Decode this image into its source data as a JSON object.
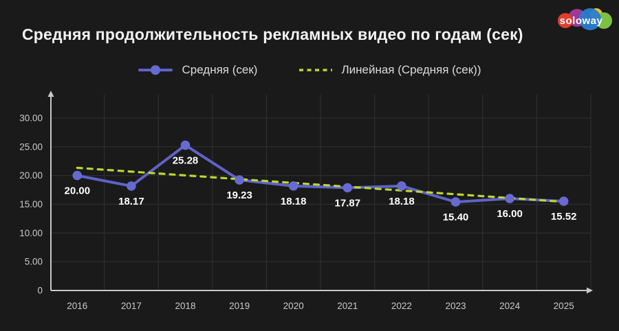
{
  "header": {
    "title": "Средняя продолжительность рекламных видео по годам (сек)"
  },
  "logo": {
    "text": "soloway",
    "circle_colors": [
      "#e23c2e",
      "#9c3a96",
      "#2a7dd1",
      "#eac42a",
      "#7cc142"
    ]
  },
  "legend": {
    "items": [
      {
        "label": "Средняя (сек)",
        "marker": "line-with-dot",
        "color": "#5e63c8"
      },
      {
        "label": "Линейная (Средняя (сек))",
        "marker": "dashed-line",
        "color": "#bdd62f"
      }
    ]
  },
  "chart_data": {
    "type": "line",
    "title": "Средняя продолжительность рекламных видео по годам (сек)",
    "categories": [
      "2016",
      "2017",
      "2018",
      "2019",
      "2020",
      "2021",
      "2022",
      "2023",
      "2024",
      "2025"
    ],
    "series": [
      {
        "name": "Средняя (сек)",
        "values": [
          20.0,
          18.17,
          25.28,
          19.23,
          18.18,
          17.87,
          18.18,
          15.4,
          16.0,
          15.52
        ],
        "point_labels": [
          "20.00",
          "18.17",
          "25.28",
          "19.23",
          "18.18",
          "17.87",
          "18.18",
          "15.40",
          "16.00",
          "15.52"
        ],
        "style": "solid-with-points",
        "line_color": "#5e63c8",
        "point_color": "#666bd1",
        "label_color": "#ffffff"
      },
      {
        "name": "Линейная (Средняя (сек))",
        "derived": "linear-trend-of-series-0",
        "style": "dashed",
        "line_color": "#bdd62f"
      }
    ],
    "y_axis": {
      "tick_values": [
        30,
        25,
        20,
        15,
        10,
        5,
        0
      ],
      "tick_labels": [
        "30.00",
        "25.00",
        "20.00",
        "15.00",
        "10.00",
        "5.00",
        "0"
      ],
      "min": 0,
      "max": 32.5
    },
    "grid": true,
    "legend_position": "top",
    "colors": {
      "background": "#1a1a1b",
      "grid": "#2d2d2d",
      "axis": "#c9c9c9",
      "tick_text": "#c9c9c9"
    }
  }
}
